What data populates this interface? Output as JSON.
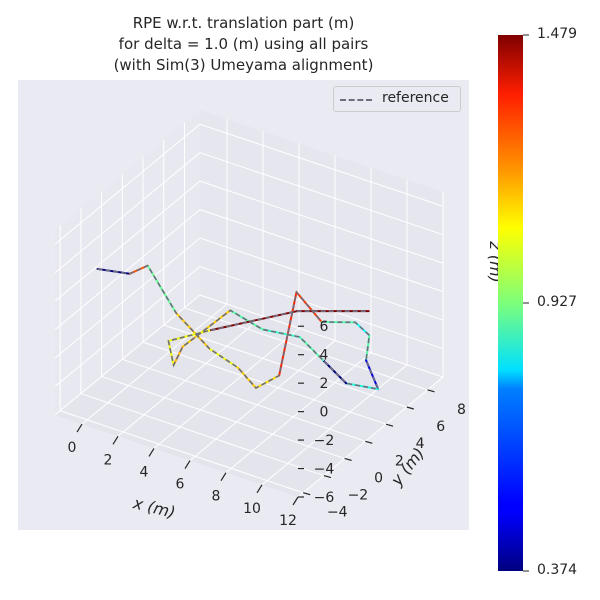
{
  "chart_data": {
    "type": "line",
    "projection": "3d",
    "title_lines": [
      "RPE w.r.t. translation part (m)",
      "for delta = 1.0 (m) using all pairs",
      "(with Sim(3) Umeyama alignment)"
    ],
    "xlabel": "x (m)",
    "ylabel": "y (m)",
    "zlabel": "z (m)",
    "xlim": [
      -1.5,
      12
    ],
    "ylim": [
      -4.5,
      9.5
    ],
    "zlim": [
      -6,
      7
    ],
    "x_ticks": [
      0,
      2,
      4,
      6,
      8,
      10,
      12
    ],
    "y_ticks": [
      -4,
      -2,
      0,
      2,
      4,
      6,
      8
    ],
    "z_ticks": [
      -6,
      -4,
      -2,
      0,
      2,
      4,
      6
    ],
    "x_tick_labels": [
      "0",
      "2",
      "4",
      "6",
      "8",
      "10",
      "12"
    ],
    "y_tick_labels": [
      "−4",
      "−2",
      "0",
      "2",
      "4",
      "6",
      "8"
    ],
    "z_tick_labels": [
      "−6",
      "−4",
      "−2",
      "0",
      "2",
      "4",
      "6"
    ],
    "grid": true,
    "legend": {
      "position": "top-right",
      "entries": [
        "reference"
      ]
    },
    "colorbar": {
      "colormap": "jet",
      "min": 0.374,
      "max": 1.479,
      "tick_values": [
        1.479,
        0.927,
        0.374
      ],
      "tick_labels": [
        "1.479",
        "0.927",
        "0.374"
      ]
    },
    "reference_path": [
      [
        0,
        -3,
        4
      ],
      [
        1.5,
        -2.5,
        4
      ],
      [
        2.5,
        -2.5,
        5
      ],
      [
        3.5,
        -1.5,
        1.5
      ],
      [
        4.5,
        0,
        -1.5
      ],
      [
        5.5,
        1,
        -3
      ],
      [
        6.5,
        1,
        -4
      ],
      [
        7.5,
        1.5,
        -3
      ],
      [
        7.6,
        3,
        2
      ],
      [
        9,
        3,
        0.5
      ],
      [
        10,
        4.5,
        0
      ],
      [
        10.5,
        5,
        -1
      ],
      [
        10.2,
        5.2,
        -3
      ],
      [
        10.7,
        5.5,
        -5
      ],
      [
        9.5,
        4.5,
        -4.5
      ],
      [
        8.5,
        4,
        -3
      ],
      [
        7.5,
        3.5,
        -1.5
      ],
      [
        6,
        2.5,
        -1
      ],
      [
        4.5,
        2,
        0
      ],
      [
        3,
        0,
        -2
      ],
      [
        2.5,
        0,
        -3.5
      ],
      [
        2.5,
        -0.5,
        -1.5
      ],
      [
        4,
        1,
        -1
      ],
      [
        7.5,
        3.2,
        0.5
      ],
      [
        10,
        5.8,
        0
      ]
    ],
    "estimate_error": [
      0.374,
      1.25,
      0.9,
      1.12,
      1.05,
      1.12,
      1.1,
      1.3,
      1.28,
      0.88,
      0.8,
      0.88,
      0.48,
      0.82,
      0.374,
      0.88,
      0.85,
      0.88,
      1.12,
      1.15,
      1.05,
      1.05,
      1.479,
      1.479
    ]
  }
}
